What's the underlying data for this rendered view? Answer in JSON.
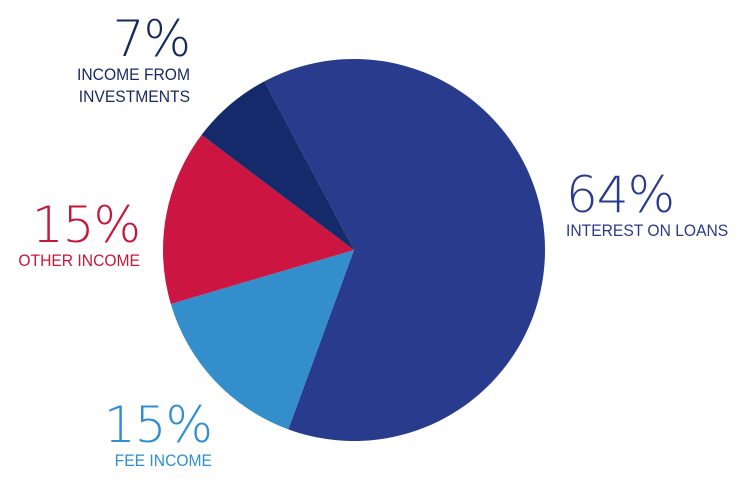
{
  "chart_data": {
    "type": "pie",
    "slices": [
      {
        "pct_label": "64%",
        "name": "INTEREST ON LOANS",
        "value": 64,
        "color": "#283b8d"
      },
      {
        "pct_label": "15%",
        "name": "FEE INCOME",
        "value": 15,
        "color": "#338ecb"
      },
      {
        "pct_label": "15%",
        "name": "OTHER INCOME",
        "value": 15,
        "color": "#cc1540"
      },
      {
        "pct_label": "7%",
        "name": "INCOME FROM INVESTMENTS",
        "name_lines": [
          "INCOME FROM",
          "INVESTMENTS"
        ],
        "value": 7,
        "color": "#142a6b"
      }
    ]
  }
}
